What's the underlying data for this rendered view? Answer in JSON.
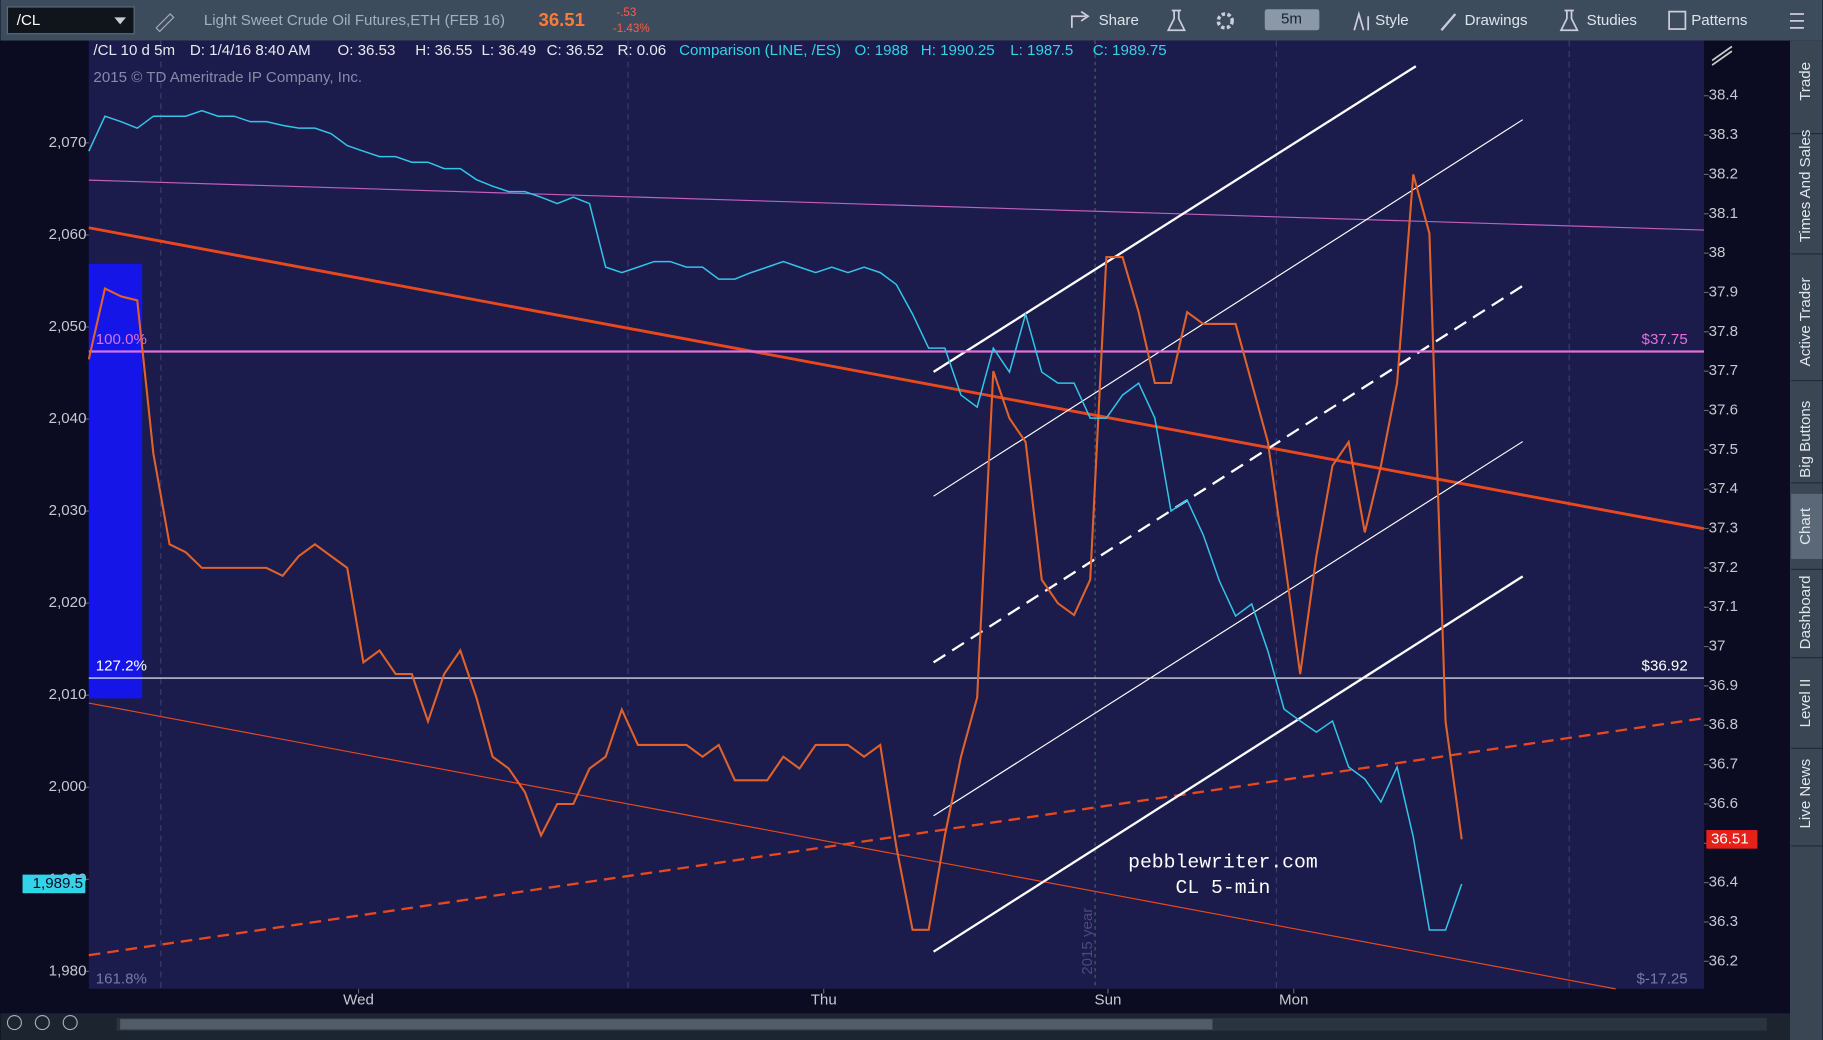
{
  "toolbar": {
    "symbol": "/CL",
    "description": "Light Sweet Crude Oil Futures,ETH (FEB 16)",
    "last": "36.51",
    "change": "-.53",
    "change_pct": "-1.43%",
    "share": "Share",
    "interval": "5m",
    "style": "Style",
    "drawings": "Drawings",
    "studies": "Studies",
    "patterns": "Patterns"
  },
  "side_tabs": [
    "Trade",
    "Times And Sales",
    "Active Trader",
    "Big Buttons",
    "Chart",
    "Dashboard",
    "Level II",
    "Live News"
  ],
  "chart_data": {
    "type": "line",
    "instrument_readout": [
      "/CL 10 d 5m",
      "D: 1/4/16 8:40 AM",
      "O: 36.53",
      "H: 36.55",
      "L: 36.49",
      "C: 36.52",
      "R: 0.06"
    ],
    "comparison_readout": [
      "Comparison (LINE, /ES)",
      "O: 1988",
      "H: 1990.25",
      "L: 1987.5",
      "C: 1989.75"
    ],
    "copyright": "2015 © TD Ameritrade IP Company, Inc.",
    "watermark": [
      "pebblewriter.com",
      "CL 5-min"
    ],
    "vertical_note": "2015 year",
    "x": [
      0,
      1,
      2,
      3,
      4,
      5,
      6,
      7,
      8,
      9,
      10,
      11,
      12,
      13,
      14,
      15,
      16,
      17,
      18,
      19,
      20,
      21,
      22,
      23,
      24,
      25,
      26,
      27,
      28,
      29,
      30,
      31,
      32,
      33,
      34,
      35,
      36,
      37,
      38,
      39,
      40,
      41,
      42,
      43,
      44,
      45,
      46,
      47,
      48,
      49,
      50,
      51,
      52,
      53,
      54,
      55,
      56,
      57,
      58,
      59,
      60,
      61,
      62,
      63,
      64,
      65,
      66,
      67,
      68,
      69,
      70,
      71,
      72,
      73,
      74,
      75,
      76,
      77,
      78,
      79,
      80,
      81,
      82,
      83,
      84,
      85
    ],
    "xlim": [
      0,
      100
    ],
    "xticks": [
      {
        "value": 16.7,
        "label": "Wed"
      },
      {
        "value": 45.5,
        "label": "Thu"
      },
      {
        "value": 63.1,
        "label": "Sun"
      },
      {
        "value": 74.6,
        "label": "Mon"
      }
    ],
    "ylim": [
      36.13,
      38.54
    ],
    "yticks": [
      36.2,
      36.3,
      36.4,
      36.5,
      36.6,
      36.7,
      36.8,
      36.9,
      37,
      37.1,
      37.2,
      37.3,
      37.4,
      37.5,
      37.6,
      37.7,
      37.8,
      37.9,
      38,
      38.1,
      38.2,
      38.3,
      38.4
    ],
    "y2lim": [
      1978.1,
      2081.1
    ],
    "y2ticks": [
      {
        "value": 1980,
        "label": "1,980"
      },
      {
        "value": 1990,
        "label": "1,990"
      },
      {
        "value": 2000,
        "label": "2,000"
      },
      {
        "value": 2010,
        "label": "2,010"
      },
      {
        "value": 2020,
        "label": "2,020"
      },
      {
        "value": 2030,
        "label": "2,030"
      },
      {
        "value": 2040,
        "label": "2,040"
      },
      {
        "value": 2050,
        "label": "2,050"
      },
      {
        "value": 2060,
        "label": "2,060"
      },
      {
        "value": 2070,
        "label": "2,070"
      }
    ],
    "series": [
      {
        "name": "/CL",
        "color": "#e0622a",
        "values": [
          37.73,
          37.91,
          37.89,
          37.88,
          37.49,
          37.26,
          37.24,
          37.2,
          37.2,
          37.2,
          37.2,
          37.2,
          37.18,
          37.23,
          37.26,
          37.23,
          37.2,
          36.96,
          36.99,
          36.93,
          36.93,
          36.81,
          36.93,
          36.99,
          36.87,
          36.72,
          36.69,
          36.63,
          36.52,
          36.6,
          36.6,
          36.69,
          36.72,
          36.84,
          36.75,
          36.75,
          36.75,
          36.75,
          36.72,
          36.75,
          36.66,
          36.66,
          36.66,
          36.72,
          36.69,
          36.75,
          36.75,
          36.75,
          36.72,
          36.75,
          36.49,
          36.28,
          36.28,
          36.52,
          36.72,
          36.87,
          37.7,
          37.58,
          37.52,
          37.17,
          37.11,
          37.08,
          37.17,
          37.99,
          37.99,
          37.85,
          37.67,
          37.67,
          37.85,
          37.82,
          37.82,
          37.82,
          37.67,
          37.52,
          37.23,
          36.93,
          37.23,
          37.46,
          37.52,
          37.29,
          37.46,
          37.67,
          38.2,
          38.05,
          36.81,
          36.51
        ]
      },
      {
        "name": "/ES",
        "color": "#33c4e8",
        "axis": "y2",
        "last_label": "1,989.5",
        "values": [
          2069.1,
          2072.9,
          2072.3,
          2071.6,
          2072.9,
          2072.9,
          2072.9,
          2073.5,
          2072.9,
          2072.9,
          2072.3,
          2072.3,
          2071.9,
          2071.6,
          2071.6,
          2071,
          2069.7,
          2069.1,
          2068.5,
          2068.5,
          2067.9,
          2067.9,
          2067.2,
          2067.2,
          2066,
          2065.3,
          2064.7,
          2064.7,
          2064.1,
          2063.4,
          2064.1,
          2063.4,
          2056.5,
          2055.9,
          2056.5,
          2057.1,
          2057.1,
          2056.5,
          2056.5,
          2055.2,
          2055.2,
          2055.9,
          2056.5,
          2057.1,
          2056.5,
          2055.9,
          2056.5,
          2055.9,
          2056.5,
          2055.9,
          2054.6,
          2051.4,
          2047.7,
          2047.7,
          2042.6,
          2041.3,
          2047.7,
          2045.1,
          2051.4,
          2045.1,
          2043.9,
          2043.9,
          2040.1,
          2040.1,
          2042.6,
          2043.9,
          2040.1,
          2030,
          2031.2,
          2027.4,
          2022.4,
          2018.6,
          2019.9,
          2014.8,
          2008.5,
          2007.2,
          2006,
          2007.2,
          2002.2,
          2000.9,
          1998.4,
          2002.2,
          1994.6,
          1984.5,
          1984.5,
          1989.5
        ]
      }
    ],
    "levels": [
      {
        "value": 37.75,
        "label": "$37.75",
        "fib": "100.0%",
        "color": "#e070e0"
      },
      {
        "value": 36.92,
        "label": "$36.92",
        "fib": "127.2%",
        "color": "#ffffff"
      }
    ],
    "fib_bottom": "161.8%",
    "bottom_right": "$-17.25"
  }
}
